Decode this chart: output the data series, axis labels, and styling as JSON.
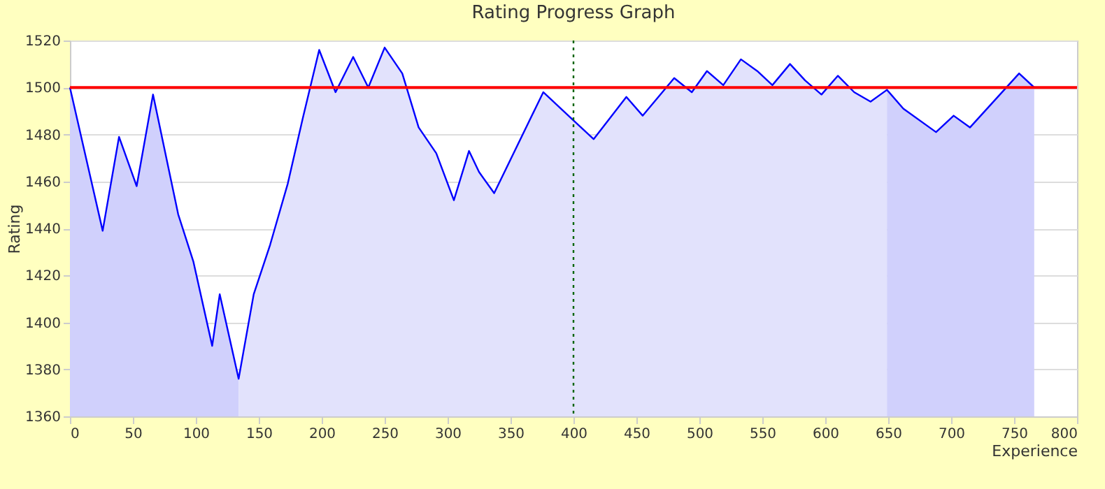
{
  "chart_data": {
    "type": "line",
    "title": "Rating Progress Graph",
    "xlabel": "Experience",
    "ylabel": "Rating",
    "xlim": [
      0,
      800
    ],
    "xticks": [
      0,
      50,
      100,
      150,
      200,
      250,
      300,
      350,
      400,
      450,
      500,
      550,
      600,
      650,
      700,
      750,
      800
    ],
    "ylim": [
      1360,
      1520
    ],
    "yticks": [
      1360,
      1380,
      1400,
      1420,
      1440,
      1460,
      1480,
      1500,
      1520
    ],
    "grid": "y",
    "marker": "none",
    "series": [
      {
        "type": "area",
        "color": "#d0d0fc",
        "x": [
          0,
          26,
          39,
          53,
          66,
          86,
          98,
          113,
          119,
          134
        ],
        "values": [
          1500,
          1439,
          1479,
          1458,
          1497,
          1446,
          1426,
          1390,
          1412,
          1376
        ]
      },
      {
        "type": "area",
        "color": "#e2e2fc",
        "x": [
          134,
          146,
          159,
          173,
          185,
          198,
          211,
          225,
          237,
          250,
          264,
          277,
          291,
          305,
          317,
          325,
          337,
          376,
          400,
          416,
          442,
          455,
          480,
          494,
          506,
          519,
          533,
          546,
          558,
          572,
          584,
          597,
          610,
          623,
          636,
          649
        ],
        "values": [
          1376,
          1412,
          1433,
          1459,
          1487,
          1516,
          1498,
          1513,
          1500,
          1517,
          1506,
          1483,
          1472,
          1452,
          1473,
          1464,
          1455,
          1498,
          1486,
          1478,
          1496,
          1488,
          1504,
          1498,
          1507,
          1501,
          1512,
          1507,
          1501,
          1510,
          1503,
          1497,
          1505,
          1498,
          1494,
          1499
        ]
      },
      {
        "type": "area",
        "color": "#d0d0fc",
        "x": [
          649,
          662,
          688,
          702,
          715,
          754,
          766
        ],
        "values": [
          1499,
          1491,
          1481,
          1488,
          1483,
          1506,
          1500
        ]
      },
      {
        "color": "#0000ff",
        "x": [
          0,
          26,
          39,
          53,
          66,
          86,
          98,
          113,
          119,
          134,
          146,
          159,
          173,
          185,
          198,
          211,
          225,
          237,
          250,
          264,
          277,
          291,
          305,
          317,
          325,
          337,
          376,
          400,
          416,
          442,
          455,
          480,
          494,
          506,
          519,
          533,
          546,
          558,
          572,
          584,
          597,
          610,
          623,
          636,
          649,
          662,
          688,
          702,
          715,
          754,
          766
        ],
        "values": [
          1500,
          1439,
          1479,
          1458,
          1497,
          1446,
          1426,
          1390,
          1412,
          1376,
          1412,
          1433,
          1459,
          1487,
          1516,
          1498,
          1513,
          1500,
          1517,
          1506,
          1483,
          1472,
          1452,
          1473,
          1464,
          1455,
          1498,
          1486,
          1478,
          1496,
          1488,
          1504,
          1498,
          1507,
          1501,
          1512,
          1507,
          1501,
          1510,
          1503,
          1497,
          1505,
          1498,
          1494,
          1499,
          1491,
          1481,
          1488,
          1483,
          1506,
          1500
        ]
      }
    ],
    "ref_lines": [
      {
        "axis": "y",
        "value": 1500,
        "color": "#ff0000",
        "line_style": "solid"
      },
      {
        "axis": "x",
        "value": 400,
        "color": "#006400",
        "line_style": "dotted"
      }
    ]
  }
}
